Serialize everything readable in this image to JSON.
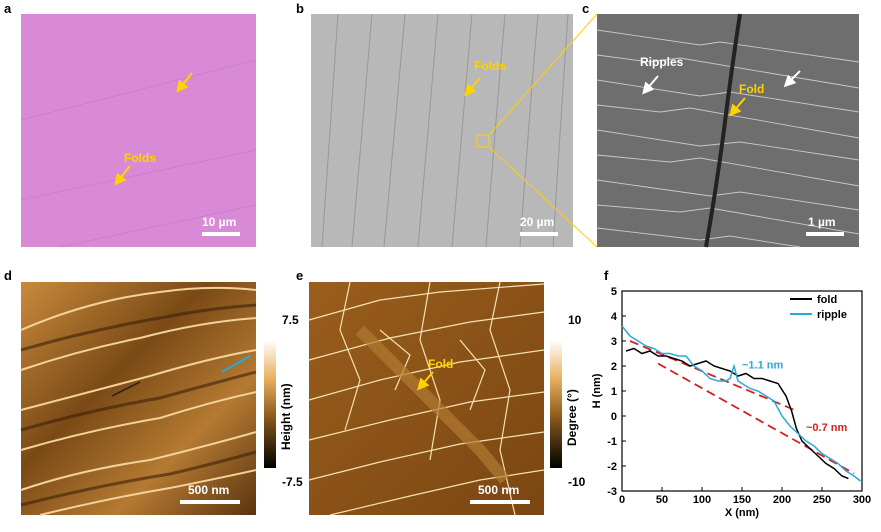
{
  "panels": {
    "a": {
      "label": "a",
      "scale": "10 µm",
      "annotation": "Folds"
    },
    "b": {
      "label": "b",
      "scale": "20 µm",
      "annotation": "Folds"
    },
    "c": {
      "label": "c",
      "scale": "1 µm",
      "annotation_ripples": "Ripples",
      "annotation_fold": "Fold"
    },
    "d": {
      "label": "d",
      "scale": "500 nm",
      "cb_max": "7.5",
      "cb_min": "-7.5",
      "cb_title": "Height (nm)"
    },
    "e": {
      "label": "e",
      "scale": "500 nm",
      "annotation": "Fold",
      "cb_max": "10",
      "cb_min": "-10",
      "cb_title": "Degree (°)"
    },
    "f": {
      "label": "f"
    }
  },
  "colors": {
    "optical_bg": "#d98ad6",
    "sem_bg": "#b8b8b8",
    "sem_dark": "#6e6e6e",
    "afm_height": "#8a5a1c",
    "afm_phase": "#8a5216",
    "annotation": "#ffd200",
    "fold_line": "#000000",
    "ripple_line": "#2aa8dd",
    "fit_dash": "#d42020"
  },
  "chart_data": {
    "type": "line",
    "xlabel": "X (nm)",
    "ylabel": "H (nm)",
    "xlim": [
      0,
      300
    ],
    "ylim": [
      -3,
      5
    ],
    "xticks": [
      0,
      50,
      100,
      150,
      200,
      250,
      300
    ],
    "yticks": [
      -3,
      -2,
      -1,
      0,
      1,
      2,
      3,
      4,
      5
    ],
    "legend_position": "top-right",
    "series": [
      {
        "name": "fold",
        "color": "#000000",
        "x": [
          5,
          15,
          25,
          35,
          45,
          55,
          65,
          75,
          85,
          95,
          105,
          115,
          125,
          135,
          145,
          155,
          165,
          175,
          185,
          195,
          205,
          212,
          218,
          225,
          235,
          245,
          255,
          265,
          275,
          283
        ],
        "y": [
          2.6,
          2.7,
          2.5,
          2.6,
          2.4,
          2.4,
          2.3,
          2.2,
          2.0,
          2.1,
          2.2,
          2.0,
          1.9,
          1.8,
          1.6,
          1.7,
          1.5,
          1.5,
          1.4,
          1.3,
          0.8,
          0.2,
          -0.5,
          -1.0,
          -1.3,
          -1.6,
          -1.9,
          -2.1,
          -2.4,
          -2.5
        ]
      },
      {
        "name": "ripple",
        "color": "#2aa8dd",
        "x": [
          0,
          10,
          20,
          30,
          40,
          50,
          60,
          70,
          80,
          90,
          100,
          110,
          120,
          130,
          135,
          140,
          145,
          150,
          160,
          170,
          180,
          190,
          200,
          210,
          220,
          230,
          240,
          250,
          260,
          270,
          280,
          290,
          298
        ],
        "y": [
          3.6,
          3.2,
          3.0,
          2.8,
          2.7,
          2.5,
          2.5,
          2.4,
          2.4,
          2.0,
          1.8,
          1.5,
          1.4,
          1.4,
          1.5,
          2.0,
          1.4,
          1.3,
          1.1,
          1.0,
          0.8,
          0.6,
          0.0,
          -0.4,
          -0.7,
          -1.0,
          -1.2,
          -1.5,
          -1.7,
          -1.9,
          -2.2,
          -2.4,
          -2.6
        ]
      }
    ],
    "fit_lines": [
      {
        "x": [
          10,
          215
        ],
        "y": [
          3.0,
          0.25
        ]
      },
      {
        "x": [
          45,
          290
        ],
        "y": [
          2.1,
          -2.3
        ]
      }
    ],
    "annotations": [
      {
        "text": "~1.1 nm",
        "color": "#2aa8dd",
        "x": 145,
        "y": 1.9
      },
      {
        "text": "~0.7 nm",
        "color": "#d42020",
        "x": 225,
        "y": -0.6
      }
    ]
  }
}
